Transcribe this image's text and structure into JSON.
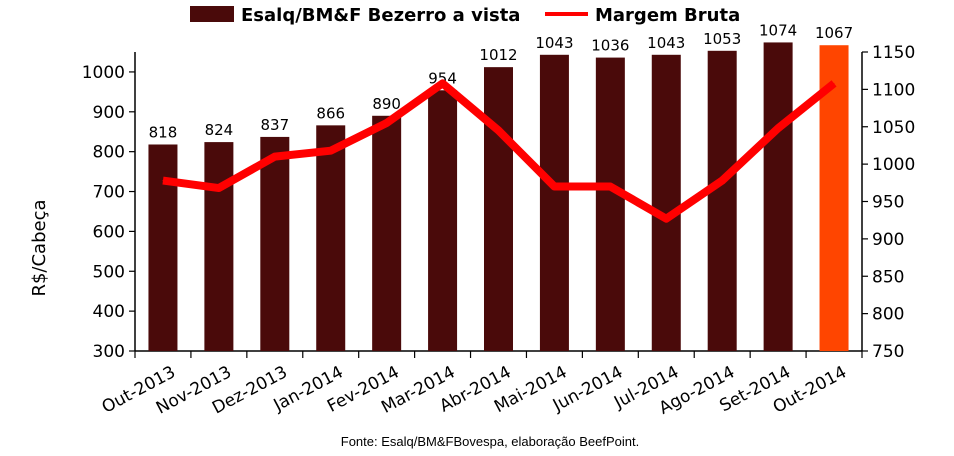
{
  "chart_data": {
    "type": "bar",
    "categories": [
      "Out-2013",
      "Nov-2013",
      "Dez-2013",
      "Jan-2014",
      "Fev-2014",
      "Mar-2014",
      "Abr-2014",
      "Mai-2014",
      "Jun-2014",
      "Jul-2014",
      "Ago-2014",
      "Set-2014",
      "Out-2014"
    ],
    "series": [
      {
        "name": "Esalq/BM&F Bezerro a vista",
        "type": "bar",
        "axis": "left",
        "color": "#4a0a0a",
        "highlight_color": "#ff4500",
        "highlight_index": 12,
        "values": [
          818,
          824,
          837,
          866,
          890,
          954,
          1012,
          1043,
          1036,
          1043,
          1053,
          1074,
          1067
        ]
      },
      {
        "name": "Margem Bruta",
        "type": "line",
        "axis": "right",
        "color": "#ff0000",
        "values": [
          978,
          968,
          1010,
          1018,
          1055,
          1108,
          1045,
          970,
          970,
          927,
          978,
          1048,
          1108
        ]
      }
    ],
    "ylabel": "R$/Cabeça",
    "ylim": [
      300,
      1050
    ],
    "yticks": [
      300,
      400,
      500,
      600,
      700,
      800,
      900,
      1000
    ],
    "y2lim": [
      750,
      1150
    ],
    "y2ticks": [
      750,
      800,
      850,
      900,
      950,
      1000,
      1050,
      1100,
      1150
    ],
    "legend_position": "top-center",
    "grid": false,
    "source": "Fonte: Esalq/BM&FBovespa, elaboração BeefPoint."
  }
}
